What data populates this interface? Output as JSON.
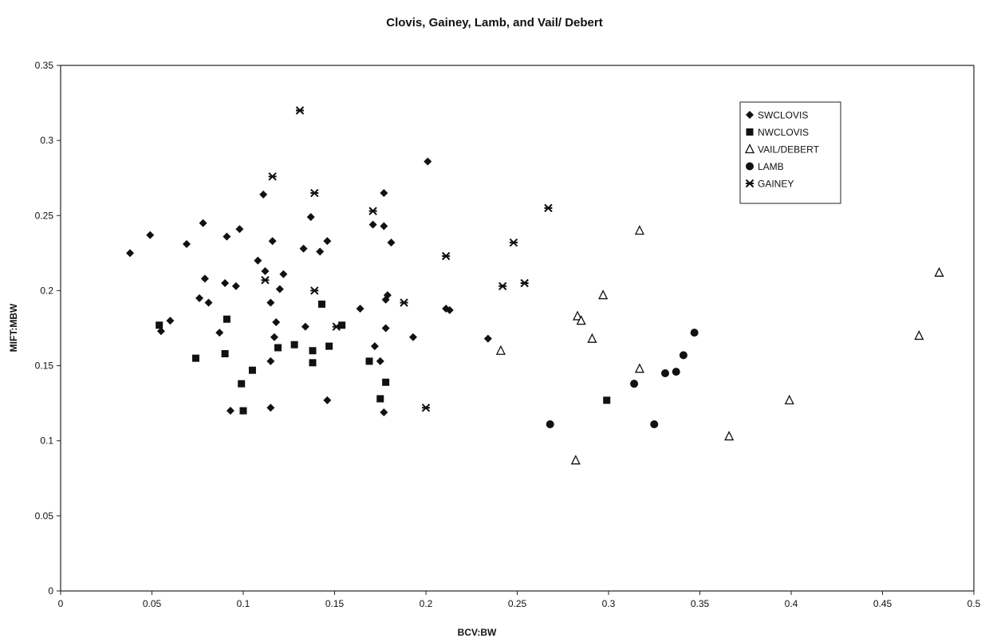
{
  "chart_data": {
    "type": "scatter",
    "title": "Clovis, Gainey, Lamb, and Vail/ Debert",
    "xlabel": "BCV:BW",
    "ylabel": "MIFT:MBW",
    "xlim": [
      0,
      0.5
    ],
    "ylim": [
      0,
      0.35
    ],
    "x_ticks": [
      0,
      0.05,
      0.1,
      0.15,
      0.2,
      0.25,
      0.3,
      0.35,
      0.4,
      0.45,
      0.5
    ],
    "y_ticks": [
      0,
      0.05,
      0.1,
      0.15,
      0.2,
      0.25,
      0.3,
      0.35
    ],
    "x_tick_labels": [
      "0",
      "0.05",
      "0.1",
      "0.15",
      "0.2",
      "0.25",
      "0.3",
      "0.35",
      "0.4",
      "0.45",
      "0.5"
    ],
    "y_tick_labels": [
      "0",
      "0.05",
      "0.1",
      "0.15",
      "0.2",
      "0.25",
      "0.3",
      "0.35"
    ],
    "grid": false,
    "legend_position": "top-right",
    "series": [
      {
        "name": "SWCLOVIS",
        "marker": "diamond",
        "color": "#111111",
        "points": [
          [
            0.038,
            0.225
          ],
          [
            0.049,
            0.237
          ],
          [
            0.055,
            0.173
          ],
          [
            0.06,
            0.18
          ],
          [
            0.069,
            0.231
          ],
          [
            0.076,
            0.195
          ],
          [
            0.078,
            0.245
          ],
          [
            0.079,
            0.208
          ],
          [
            0.081,
            0.192
          ],
          [
            0.087,
            0.172
          ],
          [
            0.09,
            0.205
          ],
          [
            0.091,
            0.236
          ],
          [
            0.093,
            0.12
          ],
          [
            0.096,
            0.203
          ],
          [
            0.098,
            0.241
          ],
          [
            0.108,
            0.22
          ],
          [
            0.111,
            0.264
          ],
          [
            0.112,
            0.213
          ],
          [
            0.115,
            0.192
          ],
          [
            0.115,
            0.153
          ],
          [
            0.116,
            0.233
          ],
          [
            0.117,
            0.169
          ],
          [
            0.118,
            0.179
          ],
          [
            0.12,
            0.201
          ],
          [
            0.115,
            0.122
          ],
          [
            0.122,
            0.211
          ],
          [
            0.133,
            0.228
          ],
          [
            0.134,
            0.176
          ],
          [
            0.137,
            0.249
          ],
          [
            0.142,
            0.226
          ],
          [
            0.146,
            0.233
          ],
          [
            0.146,
            0.127
          ],
          [
            0.164,
            0.188
          ],
          [
            0.171,
            0.244
          ],
          [
            0.172,
            0.163
          ],
          [
            0.175,
            0.153
          ],
          [
            0.177,
            0.265
          ],
          [
            0.177,
            0.243
          ],
          [
            0.178,
            0.175
          ],
          [
            0.178,
            0.194
          ],
          [
            0.179,
            0.197
          ],
          [
            0.181,
            0.232
          ],
          [
            0.177,
            0.119
          ],
          [
            0.193,
            0.169
          ],
          [
            0.201,
            0.286
          ],
          [
            0.211,
            0.188
          ],
          [
            0.213,
            0.187
          ],
          [
            0.234,
            0.168
          ]
        ]
      },
      {
        "name": "NWCLOVIS",
        "marker": "square",
        "color": "#111111",
        "points": [
          [
            0.054,
            0.177
          ],
          [
            0.074,
            0.155
          ],
          [
            0.09,
            0.158
          ],
          [
            0.091,
            0.181
          ],
          [
            0.099,
            0.138
          ],
          [
            0.1,
            0.12
          ],
          [
            0.105,
            0.147
          ],
          [
            0.119,
            0.162
          ],
          [
            0.128,
            0.164
          ],
          [
            0.138,
            0.16
          ],
          [
            0.138,
            0.152
          ],
          [
            0.143,
            0.191
          ],
          [
            0.147,
            0.163
          ],
          [
            0.154,
            0.177
          ],
          [
            0.169,
            0.153
          ],
          [
            0.175,
            0.128
          ],
          [
            0.178,
            0.139
          ],
          [
            0.299,
            0.127
          ]
        ]
      },
      {
        "name": "VAIL/DEBERT",
        "marker": "triangle",
        "color": "#111111",
        "points": [
          [
            0.241,
            0.16
          ],
          [
            0.282,
            0.087
          ],
          [
            0.283,
            0.183
          ],
          [
            0.285,
            0.18
          ],
          [
            0.291,
            0.168
          ],
          [
            0.297,
            0.197
          ],
          [
            0.317,
            0.24
          ],
          [
            0.317,
            0.148
          ],
          [
            0.366,
            0.103
          ],
          [
            0.399,
            0.127
          ],
          [
            0.47,
            0.17
          ],
          [
            0.481,
            0.212
          ]
        ]
      },
      {
        "name": "LAMB",
        "marker": "circle",
        "color": "#111111",
        "points": [
          [
            0.268,
            0.111
          ],
          [
            0.314,
            0.138
          ],
          [
            0.325,
            0.111
          ],
          [
            0.331,
            0.145
          ],
          [
            0.337,
            0.146
          ],
          [
            0.341,
            0.157
          ],
          [
            0.347,
            0.172
          ]
        ]
      },
      {
        "name": "GAINEY",
        "marker": "star",
        "color": "#111111",
        "points": [
          [
            0.112,
            0.207
          ],
          [
            0.116,
            0.276
          ],
          [
            0.131,
            0.32
          ],
          [
            0.139,
            0.265
          ],
          [
            0.139,
            0.2
          ],
          [
            0.151,
            0.176
          ],
          [
            0.171,
            0.253
          ],
          [
            0.188,
            0.192
          ],
          [
            0.2,
            0.122
          ],
          [
            0.211,
            0.223
          ],
          [
            0.242,
            0.203
          ],
          [
            0.248,
            0.232
          ],
          [
            0.254,
            0.205
          ],
          [
            0.267,
            0.255
          ]
        ]
      }
    ]
  }
}
